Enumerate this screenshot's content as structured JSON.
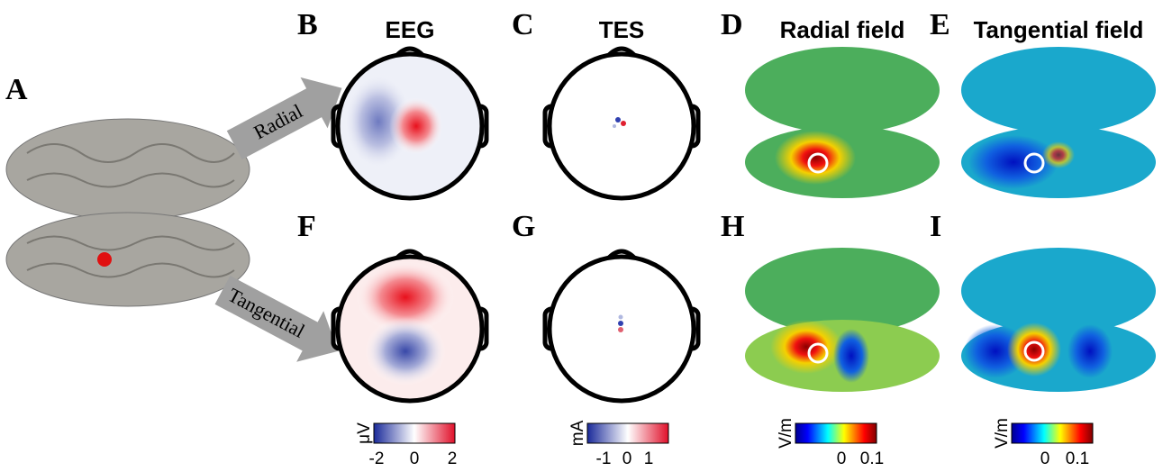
{
  "panels": [
    "A",
    "B",
    "C",
    "D",
    "E",
    "F",
    "G",
    "H",
    "I"
  ],
  "arrows": [
    "Radial",
    "Tangential"
  ],
  "column_titles": [
    "EEG",
    "TES",
    "Radial field",
    "Tangential field"
  ],
  "colorbars": [
    {
      "unit": "μV",
      "ticks": [
        -2,
        0,
        2
      ]
    },
    {
      "unit": "mA",
      "ticks": [
        -1,
        0,
        1
      ]
    },
    {
      "unit": "V/m",
      "ticks": [
        0,
        0.1
      ]
    },
    {
      "unit": "V/m",
      "ticks": [
        0,
        0.1
      ]
    }
  ]
}
